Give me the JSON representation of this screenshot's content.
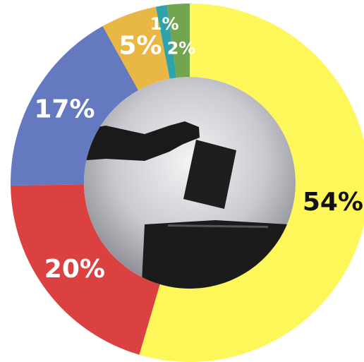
{
  "chart_data": {
    "type": "donut",
    "values": [
      54,
      20,
      17,
      5,
      1,
      2
    ],
    "value_labels": [
      "54%",
      "20%",
      "17%",
      "5%",
      "1%",
      "2%"
    ],
    "colors": [
      "#fef75a",
      "#dc4141",
      "#6479c0",
      "#e9b744",
      "#2fa3a9",
      "#73a550"
    ],
    "label_colors": [
      "#111111",
      "#ffffff",
      "#ffffff",
      "#ffffff",
      "#ffffff",
      "#ffffff"
    ]
  }
}
